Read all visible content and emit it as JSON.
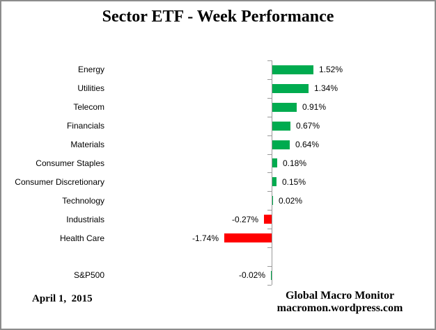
{
  "title": "Sector ETF - Week Performance",
  "colors": {
    "positive": "#00AB4F",
    "negative": "#FF0000",
    "axis": "#999999",
    "border": "#8C8C8C",
    "text": "#000000"
  },
  "footer": {
    "date": "April 1,  2015",
    "attribution_line1": "Global Macro Monitor",
    "attribution_line2": "macromon.wordpress.com"
  },
  "chart_data": {
    "type": "bar",
    "orientation": "horizontal",
    "title": "Sector ETF - Week Performance",
    "unit": "%",
    "value_labels": "outside-end",
    "legend": "none",
    "gridlines": false,
    "x_axis": {
      "baseline": 0,
      "approx_range": [
        -2.0,
        2.0
      ],
      "ticks_visible": false
    },
    "rows": [
      {
        "category": "Energy",
        "value": 1.52,
        "label": "1.52%",
        "color": "green"
      },
      {
        "category": "Utilities",
        "value": 1.34,
        "label": "1.34%",
        "color": "green"
      },
      {
        "category": "Telecom",
        "value": 0.91,
        "label": "0.91%",
        "color": "green"
      },
      {
        "category": "Financials",
        "value": 0.67,
        "label": "0.67%",
        "color": "green"
      },
      {
        "category": "Materials",
        "value": 0.64,
        "label": "0.64%",
        "color": "green"
      },
      {
        "category": "Consumer Staples",
        "value": 0.18,
        "label": "0.18%",
        "color": "green"
      },
      {
        "category": "Consumer Discretionary",
        "value": 0.15,
        "label": "0.15%",
        "color": "green"
      },
      {
        "category": "Technology",
        "value": 0.02,
        "label": "0.02%",
        "color": "green"
      },
      {
        "category": "Industrials",
        "value": -0.27,
        "label": "-0.27%",
        "color": "red"
      },
      {
        "category": "Health Care",
        "value": -1.74,
        "label": "-1.74%",
        "color": "red"
      },
      {
        "category": "S&P500",
        "value": -0.02,
        "label": "-0.02%",
        "color": "green",
        "gap_before": true
      }
    ]
  }
}
